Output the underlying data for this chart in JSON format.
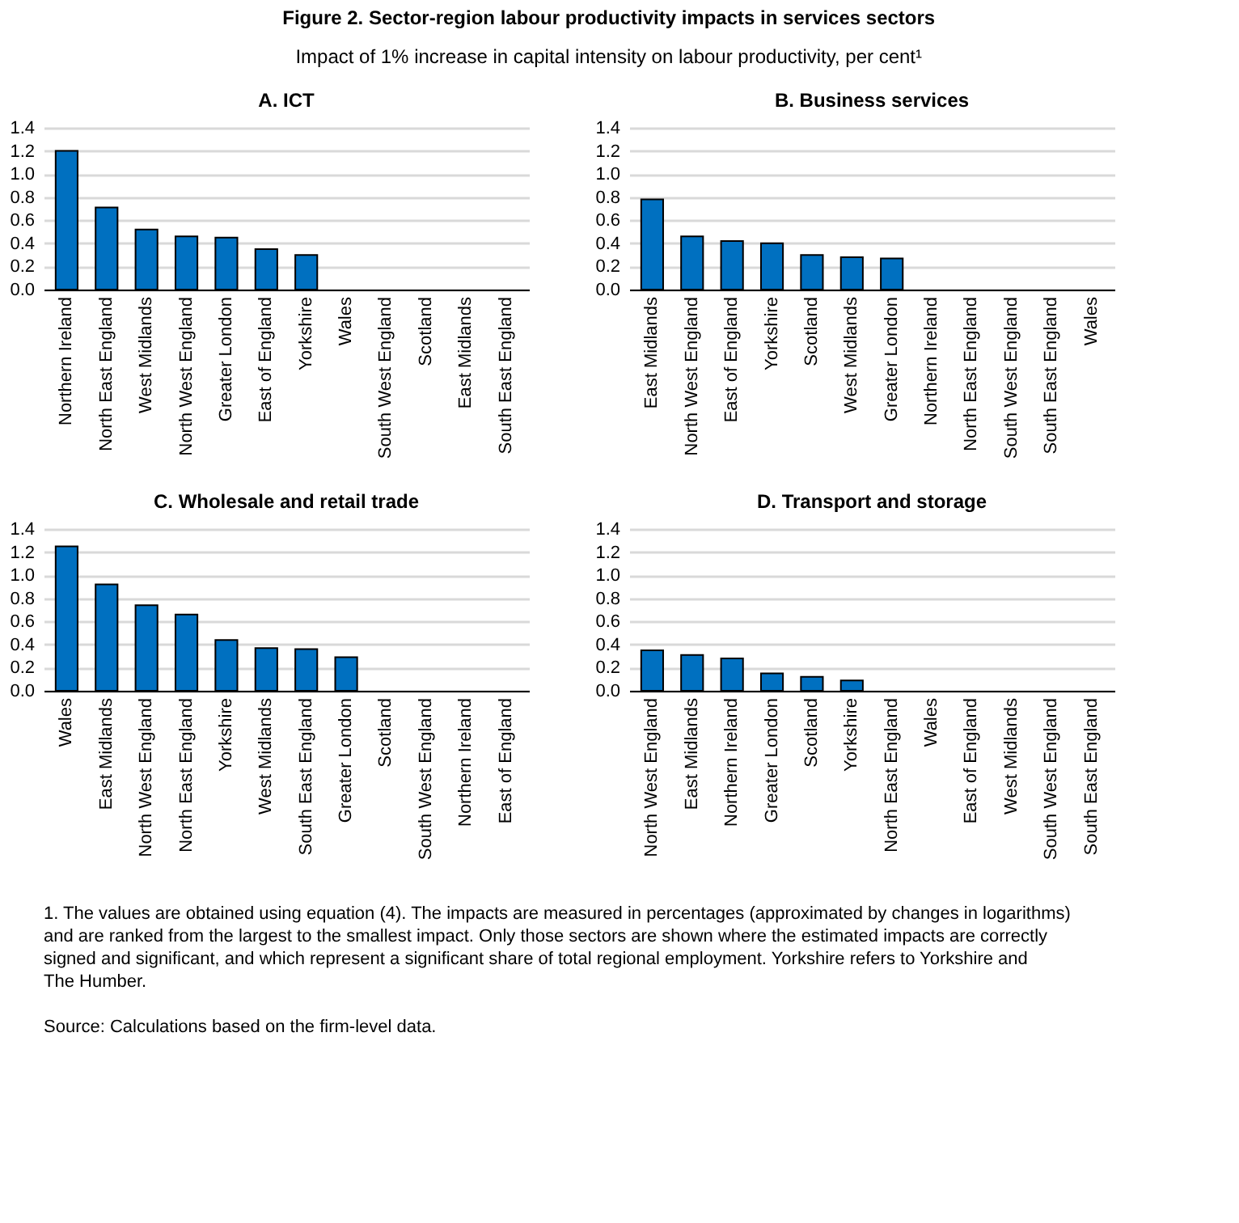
{
  "chart_data": [
    {
      "type": "other",
      "title": "Figure 2. Sector-region labour productivity impacts in services sectors",
      "subtitle": "Impact of 1% increase in capital intensity on labour productivity, per cent¹",
      "annotations": [
        "1. The values are obtained using equation (4). The impacts are measured in percentages (approximated by changes in logarithms) and are ranked from the largest to the smallest impact. Only those sectors are shown where the estimated impacts are correctly signed and significant, and which represent a significant share of total regional employment. Yorkshire refers to Yorkshire and The Humber.",
        "Source: Calculations based on the firm-level data."
      ]
    },
    {
      "type": "bar",
      "title": "A. ICT",
      "categories": [
        "Northern Ireland",
        "North East England",
        "West Midlands",
        "North West England",
        "Greater London",
        "East of England",
        "Yorkshire",
        "Wales",
        "South West England",
        "Scotland",
        "East Midlands",
        "South East England"
      ],
      "values": [
        1.2,
        0.71,
        0.52,
        0.46,
        0.45,
        0.35,
        0.3,
        null,
        null,
        null,
        null,
        null
      ],
      "color": "#0070c0",
      "ylim": [
        0,
        1.4
      ],
      "yticks": [
        {
          "value": 0,
          "label": "0.0"
        },
        0.2,
        0.4,
        0.6,
        0.8,
        {
          "value": 1,
          "label": "1.0"
        },
        1.2,
        1.4
      ],
      "grid": "y"
    },
    {
      "type": "bar",
      "title": "B. Business services",
      "categories": [
        "East Midlands",
        "North West England",
        "East of England",
        "Yorkshire",
        "Scotland",
        "West Midlands",
        "Greater London",
        "Northern Ireland",
        "North East England",
        "South West England",
        "South East England",
        "Wales"
      ],
      "values": [
        0.78,
        0.46,
        0.42,
        0.4,
        0.3,
        0.28,
        0.27,
        null,
        null,
        null,
        null,
        null
      ],
      "color": "#0070c0",
      "ylim": [
        0,
        1.4
      ],
      "yticks": [
        {
          "value": 0,
          "label": "0.0"
        },
        0.2,
        0.4,
        0.6,
        0.8,
        {
          "value": 1,
          "label": "1.0"
        },
        1.2,
        1.4
      ],
      "grid": "y"
    },
    {
      "type": "bar",
      "title": "C. Wholesale and retail trade",
      "categories": [
        "Wales",
        "East Midlands",
        "North West England",
        "North East England",
        "Yorkshire",
        "West Midlands",
        "South East England",
        "Greater London",
        "Scotland",
        "South West England",
        "Northern Ireland",
        "East of England"
      ],
      "values": [
        1.25,
        0.92,
        0.74,
        0.66,
        0.44,
        0.37,
        0.36,
        0.29,
        null,
        null,
        null,
        null
      ],
      "color": "#0070c0",
      "ylim": [
        0,
        1.4
      ],
      "yticks": [
        {
          "value": 0,
          "label": "0.0"
        },
        0.2,
        0.4,
        0.6,
        0.8,
        {
          "value": 1,
          "label": "1.0"
        },
        1.2,
        1.4
      ],
      "grid": "y"
    },
    {
      "type": "bar",
      "title": "D. Transport and storage",
      "categories": [
        "North West England",
        "East Midlands",
        "Northern Ireland",
        "Greater London",
        "Scotland",
        "Yorkshire",
        "North East England",
        "Wales",
        "East of England",
        "West Midlands",
        "South West England",
        "South East England"
      ],
      "values": [
        0.35,
        0.31,
        0.28,
        0.15,
        0.12,
        0.09,
        null,
        null,
        null,
        null,
        null,
        null
      ],
      "color": "#0070c0",
      "ylim": [
        0,
        1.4
      ],
      "yticks": [
        {
          "value": 0,
          "label": "0.0"
        },
        0.2,
        0.4,
        0.6,
        0.8,
        {
          "value": 1,
          "label": "1.0"
        },
        1.2,
        1.4
      ],
      "grid": "y"
    }
  ]
}
